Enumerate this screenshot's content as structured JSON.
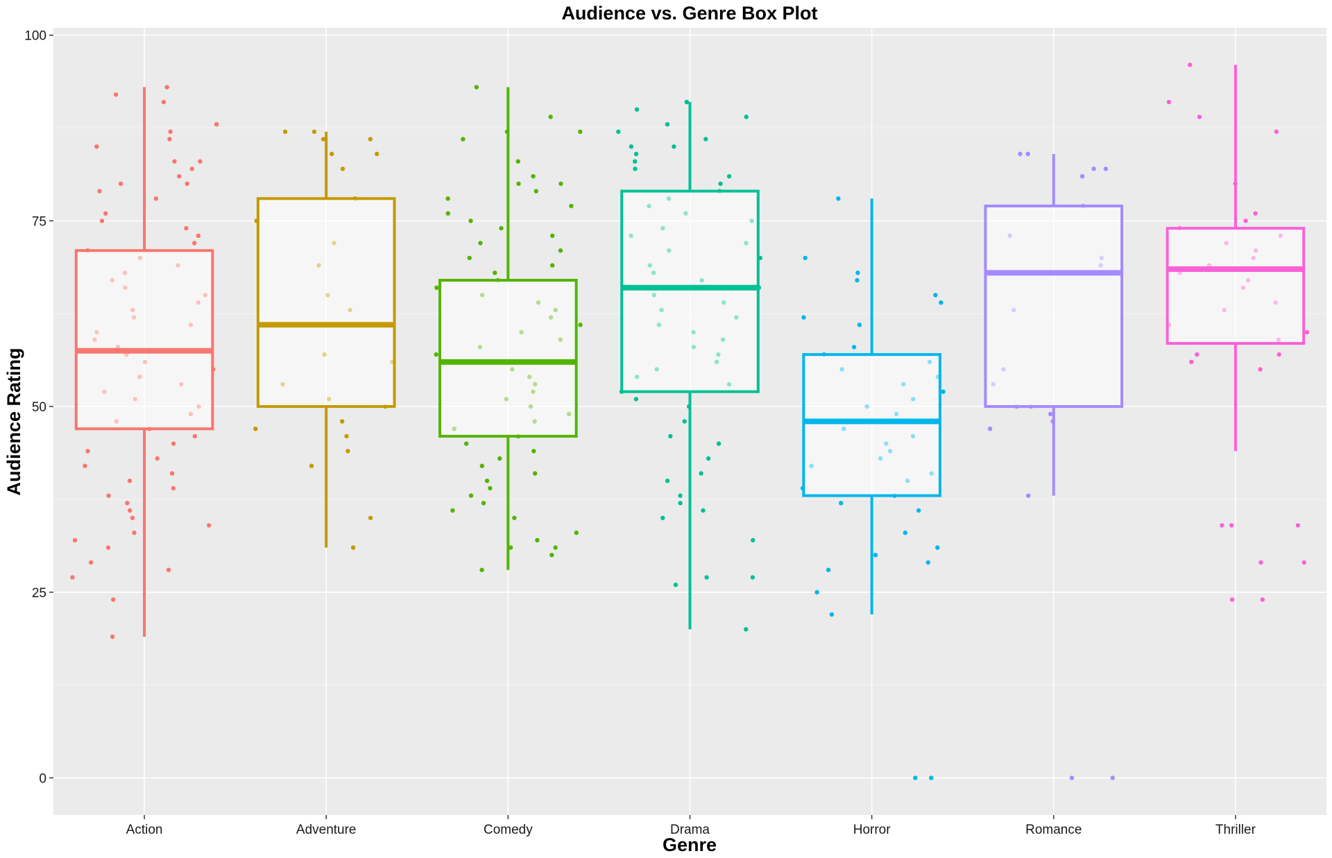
{
  "chart_data": {
    "type": "box",
    "title": "Audience vs. Genre Box Plot",
    "xlabel": "Genre",
    "ylabel": "Audience Rating",
    "ylim": [
      -5,
      101
    ],
    "yticks": [
      0,
      25,
      50,
      75,
      100
    ],
    "grid": true,
    "legend": "none",
    "categories": [
      "Action",
      "Adventure",
      "Comedy",
      "Drama",
      "Horror",
      "Romance",
      "Thriller"
    ],
    "colors": [
      "#F8766D",
      "#C49A00",
      "#53B400",
      "#00C094",
      "#00B6EB",
      "#A58AFF",
      "#FB61D7"
    ],
    "boxes": [
      {
        "genre": "Action",
        "whisker_low": 19,
        "q1": 47,
        "median": 57.5,
        "q3": 71,
        "whisker_high": 93
      },
      {
        "genre": "Adventure",
        "whisker_low": 31,
        "q1": 50,
        "median": 61,
        "q3": 78,
        "whisker_high": 87
      },
      {
        "genre": "Comedy",
        "whisker_low": 28,
        "q1": 46,
        "median": 56,
        "q3": 67,
        "whisker_high": 93
      },
      {
        "genre": "Drama",
        "whisker_low": 20,
        "q1": 52,
        "median": 66,
        "q3": 79,
        "whisker_high": 91
      },
      {
        "genre": "Horror",
        "whisker_low": 22,
        "q1": 38,
        "median": 48,
        "q3": 57,
        "whisker_high": 78
      },
      {
        "genre": "Romance",
        "whisker_low": 38,
        "q1": 50,
        "median": 68,
        "q3": 77,
        "whisker_high": 84
      },
      {
        "genre": "Thriller",
        "whisker_low": 44,
        "q1": 58.5,
        "median": 68.5,
        "q3": 74,
        "whisker_high": 96
      }
    ],
    "jitter_points": [
      {
        "genre": "Action",
        "values": [
          93,
          92,
          91,
          88,
          87,
          86,
          85,
          83,
          83,
          82,
          81,
          80,
          80,
          79,
          78,
          76,
          75,
          74,
          73,
          72,
          71,
          70,
          69,
          68,
          67,
          66,
          65,
          64,
          63,
          62,
          61,
          60,
          59,
          58,
          57,
          56,
          55,
          54,
          53,
          52,
          51,
          50,
          49,
          48,
          47,
          46,
          45,
          44,
          43,
          42,
          41,
          40,
          39,
          38,
          37,
          36,
          35,
          34,
          33,
          32,
          31,
          29,
          28,
          27,
          24,
          19
        ]
      },
      {
        "genre": "Adventure",
        "values": [
          87,
          87,
          86,
          86,
          84,
          84,
          82,
          78,
          75,
          72,
          69,
          65,
          63,
          61,
          57,
          56,
          53,
          51,
          50,
          48,
          47,
          46,
          44,
          42,
          35,
          31
        ]
      },
      {
        "genre": "Comedy",
        "values": [
          93,
          89,
          87,
          87,
          86,
          83,
          81,
          80,
          80,
          79,
          78,
          77,
          76,
          75,
          74,
          73,
          72,
          71,
          70,
          69,
          68,
          67,
          66,
          65,
          64,
          63,
          62,
          61,
          60,
          59,
          58,
          57,
          56,
          55,
          54,
          53,
          52,
          51,
          50,
          49,
          48,
          47,
          46,
          45,
          44,
          43,
          42,
          41,
          40,
          39,
          38,
          37,
          36,
          35,
          33,
          32,
          31,
          31,
          30,
          28
        ]
      },
      {
        "genre": "Drama",
        "values": [
          91,
          91,
          90,
          89,
          88,
          87,
          86,
          85,
          85,
          84,
          83,
          82,
          81,
          80,
          79,
          78,
          77,
          76,
          75,
          74,
          73,
          72,
          71,
          70,
          69,
          68,
          67,
          66,
          65,
          64,
          63,
          62,
          61,
          60,
          59,
          58,
          57,
          56,
          55,
          54,
          53,
          52,
          51,
          50,
          48,
          46,
          45,
          43,
          41,
          40,
          38,
          37,
          36,
          35,
          32,
          27,
          27,
          26,
          20
        ]
      },
      {
        "genre": "Horror",
        "values": [
          78,
          70,
          68,
          67,
          65,
          64,
          62,
          61,
          58,
          57,
          56,
          55,
          54,
          53,
          52,
          51,
          50,
          49,
          48,
          47,
          46,
          45,
          44,
          43,
          42,
          41,
          40,
          39,
          38,
          37,
          36,
          33,
          31,
          30,
          29,
          28,
          25,
          22,
          0,
          0
        ]
      },
      {
        "genre": "Romance",
        "values": [
          84,
          84,
          82,
          82,
          81,
          77,
          73,
          70,
          69,
          68,
          63,
          55,
          53,
          50,
          50,
          49,
          48,
          47,
          38,
          0,
          0
        ]
      },
      {
        "genre": "Thriller",
        "values": [
          96,
          91,
          89,
          87,
          80,
          76,
          75,
          74,
          73,
          72,
          71,
          70,
          69,
          68,
          67,
          66,
          64,
          63,
          61,
          60,
          59,
          57,
          57,
          56,
          55,
          34,
          34,
          34,
          29,
          29,
          24,
          24
        ]
      }
    ]
  }
}
